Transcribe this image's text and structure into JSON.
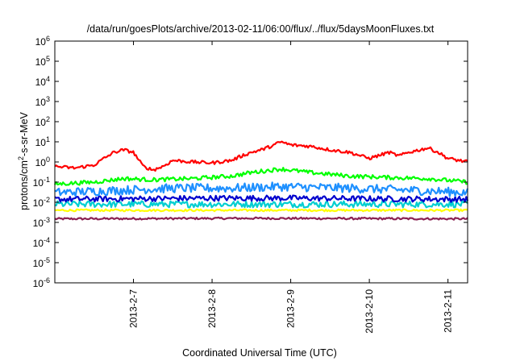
{
  "chart_data": {
    "type": "line",
    "title": "/data/run/goesPlots/archive/2013-02-11/06:00/flux/../flux/5daysMoonFluxes.txt",
    "xlabel": "Coordinated Universal Time (UTC)",
    "ylabel": {
      "prefix": "protons/cm",
      "sup": "2",
      "suffix": "-s-sr-MeV"
    },
    "y_scale": "log",
    "ylim": [
      1e-06,
      1000000.0
    ],
    "y_ticks": [
      {
        "base": "10",
        "exp": "6",
        "value": 1000000.0
      },
      {
        "base": "10",
        "exp": "5",
        "value": 100000.0
      },
      {
        "base": "10",
        "exp": "4",
        "value": 10000.0
      },
      {
        "base": "10",
        "exp": "3",
        "value": 1000.0
      },
      {
        "base": "10",
        "exp": "2",
        "value": 100.0
      },
      {
        "base": "10",
        "exp": "1",
        "value": 10.0
      },
      {
        "base": "10",
        "exp": "0",
        "value": 1
      },
      {
        "base": "10",
        "exp": "-1",
        "value": 0.1
      },
      {
        "base": "10",
        "exp": "-2",
        "value": 0.01
      },
      {
        "base": "10",
        "exp": "-3",
        "value": 0.001
      },
      {
        "base": "10",
        "exp": "-4",
        "value": 0.0001
      },
      {
        "base": "10",
        "exp": "-5",
        "value": 1e-05
      },
      {
        "base": "10",
        "exp": "-6",
        "value": 1e-06
      }
    ],
    "x_range": [
      "2013-02-06T00:00",
      "2013-02-11T06:00"
    ],
    "x_ticks": [
      "2013-2-7",
      "2013-2-8",
      "2013-2-9",
      "2013-2-10",
      "2013-2-11"
    ],
    "grid": false,
    "series": [
      {
        "color": "#ff0000",
        "base": [
          [
            "2013-02-06T00:00",
            0.6
          ],
          [
            "2013-02-06T06:00",
            0.5
          ],
          [
            "2013-02-06T12:00",
            0.7
          ],
          [
            "2013-02-06T15:00",
            1.5
          ],
          [
            "2013-02-06T18:00",
            3
          ],
          [
            "2013-02-06T21:00",
            4
          ],
          [
            "2013-02-07T00:00",
            3
          ],
          [
            "2013-02-07T03:00",
            0.6
          ],
          [
            "2013-02-07T06:00",
            0.4
          ],
          [
            "2013-02-07T09:00",
            0.6
          ],
          [
            "2013-02-07T12:00",
            1.2
          ],
          [
            "2013-02-07T18:00",
            1.0
          ],
          [
            "2013-02-08T00:00",
            0.9
          ],
          [
            "2013-02-08T06:00",
            1.2
          ],
          [
            "2013-02-08T09:00",
            2
          ],
          [
            "2013-02-08T12:00",
            3
          ],
          [
            "2013-02-08T15:00",
            4
          ],
          [
            "2013-02-08T18:00",
            6
          ],
          [
            "2013-02-08T21:00",
            10
          ],
          [
            "2013-02-09T00:00",
            7
          ],
          [
            "2013-02-09T06:00",
            6
          ],
          [
            "2013-02-09T12:00",
            4
          ],
          [
            "2013-02-09T18:00",
            3
          ],
          [
            "2013-02-10T00:00",
            1.5
          ],
          [
            "2013-02-10T06:00",
            3
          ],
          [
            "2013-02-10T09:00",
            2
          ],
          [
            "2013-02-10T12:00",
            3
          ],
          [
            "2013-02-10T18:00",
            5
          ],
          [
            "2013-02-10T21:00",
            3
          ],
          [
            "2013-02-11T00:00",
            1.5
          ],
          [
            "2013-02-11T06:00",
            1.0
          ]
        ]
      },
      {
        "color": "#00ff00",
        "base": [
          [
            "2013-02-06T00:00",
            0.08
          ],
          [
            "2013-02-06T12:00",
            0.1
          ],
          [
            "2013-02-06T21:00",
            0.15
          ],
          [
            "2013-02-07T06:00",
            0.13
          ],
          [
            "2013-02-07T18:00",
            0.15
          ],
          [
            "2013-02-08T06:00",
            0.2
          ],
          [
            "2013-02-08T12:00",
            0.3
          ],
          [
            "2013-02-08T21:00",
            0.45
          ],
          [
            "2013-02-09T06:00",
            0.3
          ],
          [
            "2013-02-09T18:00",
            0.2
          ],
          [
            "2013-02-10T06:00",
            0.17
          ],
          [
            "2013-02-10T18:00",
            0.15
          ],
          [
            "2013-02-11T06:00",
            0.1
          ]
        ]
      },
      {
        "color": "#1e90ff",
        "base": [
          [
            "2013-02-06T00:00",
            0.03
          ],
          [
            "2013-02-06T21:00",
            0.04
          ],
          [
            "2013-02-07T12:00",
            0.05
          ],
          [
            "2013-02-08T06:00",
            0.05
          ],
          [
            "2013-02-08T21:00",
            0.06
          ],
          [
            "2013-02-09T18:00",
            0.05
          ],
          [
            "2013-02-10T12:00",
            0.04
          ],
          [
            "2013-02-11T06:00",
            0.03
          ]
        ]
      },
      {
        "color": "#0000cd",
        "base": [
          [
            "2013-02-06T00:00",
            0.014
          ],
          [
            "2013-02-07T00:00",
            0.015
          ],
          [
            "2013-02-08T00:00",
            0.016
          ],
          [
            "2013-02-09T00:00",
            0.016
          ],
          [
            "2013-02-10T00:00",
            0.015
          ],
          [
            "2013-02-11T06:00",
            0.014
          ]
        ]
      },
      {
        "color": "#00ced1",
        "base": [
          [
            "2013-02-06T00:00",
            0.008
          ],
          [
            "2013-02-08T00:00",
            0.008
          ],
          [
            "2013-02-11T06:00",
            0.008
          ]
        ]
      },
      {
        "color": "#ffff00",
        "base": [
          [
            "2013-02-06T00:00",
            0.004
          ],
          [
            "2013-02-08T12:00",
            0.004
          ],
          [
            "2013-02-11T06:00",
            0.004
          ]
        ]
      },
      {
        "color": "#8b2252",
        "base": [
          [
            "2013-02-06T00:00",
            0.0015
          ],
          [
            "2013-02-08T12:00",
            0.0016
          ],
          [
            "2013-02-11T06:00",
            0.0015
          ]
        ]
      }
    ]
  }
}
